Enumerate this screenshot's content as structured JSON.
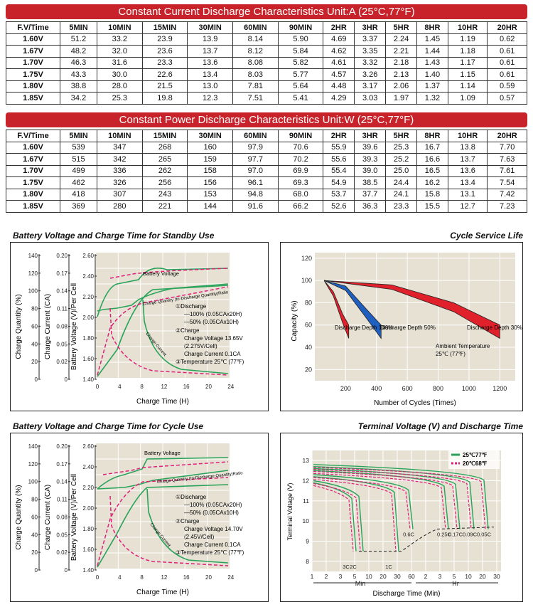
{
  "current_table": {
    "title": "Constant Current Discharge Characteristics    Unit:A (25°C,77°F)",
    "headers": [
      "F.V/Time",
      "5MIN",
      "10MIN",
      "15MIN",
      "30MIN",
      "60MIN",
      "90MIN",
      "2HR",
      "3HR",
      "5HR",
      "8HR",
      "10HR",
      "20HR"
    ],
    "rows": [
      [
        "1.60V",
        "51.2",
        "33.2",
        "23.9",
        "13.9",
        "8.14",
        "5.90",
        "4.69",
        "3.37",
        "2.24",
        "1.45",
        "1.19",
        "0.62"
      ],
      [
        "1.67V",
        "48.2",
        "32.0",
        "23.6",
        "13.7",
        "8.12",
        "5.84",
        "4.62",
        "3.35",
        "2.21",
        "1.44",
        "1.18",
        "0.61"
      ],
      [
        "1.70V",
        "46.3",
        "31.6",
        "23.3",
        "13.6",
        "8.08",
        "5.82",
        "4.61",
        "3.32",
        "2.18",
        "1.43",
        "1.17",
        "0.61"
      ],
      [
        "1.75V",
        "43.3",
        "30.0",
        "22.6",
        "13.4",
        "8.03",
        "5.77",
        "4.57",
        "3.26",
        "2.13",
        "1.40",
        "1.15",
        "0.61"
      ],
      [
        "1.80V",
        "38.8",
        "28.0",
        "21.5",
        "13.0",
        "7.81",
        "5.64",
        "4.48",
        "3.17",
        "2.06",
        "1.37",
        "1.14",
        "0.59"
      ],
      [
        "1.85V",
        "34.2",
        "25.3",
        "19.8",
        "12.3",
        "7.51",
        "5.41",
        "4.29",
        "3.03",
        "1.97",
        "1.32",
        "1.09",
        "0.57"
      ]
    ]
  },
  "power_table": {
    "title": "Constant Power Discharge Characteristics    Unit:W (25°C,77°F)",
    "headers": [
      "F.V/Time",
      "5MIN",
      "10MIN",
      "15MIN",
      "30MIN",
      "60MIN",
      "90MIN",
      "2HR",
      "3HR",
      "5HR",
      "8HR",
      "10HR",
      "20HR"
    ],
    "rows": [
      [
        "1.60V",
        "539",
        "347",
        "268",
        "160",
        "97.9",
        "70.6",
        "55.9",
        "39.6",
        "25.3",
        "16.7",
        "13.8",
        "7.70"
      ],
      [
        "1.67V",
        "515",
        "342",
        "265",
        "159",
        "97.7",
        "70.2",
        "55.6",
        "39.3",
        "25.2",
        "16.6",
        "13.7",
        "7.63"
      ],
      [
        "1.70V",
        "499",
        "336",
        "262",
        "158",
        "97.0",
        "69.9",
        "55.4",
        "39.0",
        "25.0",
        "16.5",
        "13.6",
        "7.61"
      ],
      [
        "1.75V",
        "462",
        "326",
        "256",
        "156",
        "96.1",
        "69.3",
        "54.9",
        "38.5",
        "24.4",
        "16.2",
        "13.4",
        "7.54"
      ],
      [
        "1.80V",
        "418",
        "307",
        "243",
        "153",
        "94.8",
        "68.0",
        "53.7",
        "37.7",
        "24.1",
        "15.8",
        "13.1",
        "7.42"
      ],
      [
        "1.85V",
        "369",
        "280",
        "221",
        "144",
        "91.6",
        "66.2",
        "52.6",
        "36.3",
        "23.3",
        "15.5",
        "12.7",
        "7.23"
      ]
    ]
  },
  "chart_data": [
    {
      "type": "line",
      "title": "Battery Voltage and Charge Time for Standby Use",
      "xlabel": "Charge Time (H)",
      "x_ticks": [
        "0",
        "4",
        "8",
        "12",
        "16",
        "20",
        "24"
      ],
      "axes": [
        {
          "label": "Charge Quantity (%)",
          "ticks": [
            "140",
            "120",
            "100",
            "80",
            "60",
            "40",
            "20",
            "0"
          ]
        },
        {
          "label": "Charge Current (CA)",
          "ticks": [
            "0.20",
            "0.17",
            "0.14",
            "0.11",
            "0.08",
            "0.05",
            "0.02",
            "0"
          ]
        },
        {
          "label": "Battery Voltage (V)/Per Cell",
          "ticks": [
            "2.60",
            "2.40",
            "2.20",
            "2.00",
            "1.80",
            "1.60",
            "1.40"
          ]
        }
      ],
      "curve_labels": [
        "Battery Voltage",
        "Charge Quantity (to-Discharge Quantity)Ratio",
        "Charge Current"
      ],
      "notes": [
        "①Discharge",
        "—100% (0.05CAx20H)",
        "—50% (0.05CAx10H)",
        "②Charge",
        "Charge Voltage 13.65V",
        "(2.275V/Cell)",
        "Charge Current 0.1CA",
        "③Temperature 25℃ (77℉)"
      ]
    },
    {
      "type": "line",
      "title": "Cycle Service Life",
      "xlabel": "Number of Cycles (Times)",
      "ylabel": "Capacity (%)",
      "x_ticks": [
        "200",
        "400",
        "600",
        "800",
        "1000",
        "1200"
      ],
      "y_ticks": [
        "120",
        "100",
        "80",
        "60",
        "40",
        "20"
      ],
      "series": [
        {
          "name": "Discharge Depth 100%",
          "color": "#e0202a",
          "x": [
            60,
            120,
            180,
            220
          ],
          "y": [
            100,
            90,
            70,
            60
          ]
        },
        {
          "name": "Discharge Depth 50%",
          "color": "#1f5fbf",
          "x": [
            60,
            200,
            330,
            430
          ],
          "y": [
            100,
            95,
            75,
            60
          ]
        },
        {
          "name": "Discharge Depth 30%",
          "color": "#e0202a",
          "x": [
            60,
            500,
            900,
            1200
          ],
          "y": [
            100,
            96,
            80,
            60
          ]
        }
      ],
      "annotation": [
        "Ambient Temperature",
        "25℃ (77℉)"
      ]
    },
    {
      "type": "line",
      "title": "Battery Voltage and Charge Time for Cycle Use",
      "xlabel": "Charge Time (H)",
      "x_ticks": [
        "0",
        "4",
        "8",
        "12",
        "16",
        "20",
        "24"
      ],
      "axes": [
        {
          "label": "Charge Quantity (%)",
          "ticks": [
            "140",
            "120",
            "100",
            "80",
            "60",
            "40",
            "20",
            "0"
          ]
        },
        {
          "label": "Charge Current (CA)",
          "ticks": [
            "0.20",
            "0.17",
            "0.14",
            "0.11",
            "0.08",
            "0.05",
            "0.02",
            "0"
          ]
        },
        {
          "label": "Battery Voltage (V)/Per Cell",
          "ticks": [
            "2.60",
            "2.40",
            "2.20",
            "2.00",
            "1.80",
            "1.60",
            "1.40"
          ]
        }
      ],
      "curve_labels": [
        "Battery Voltage",
        "Charge Quantity (to-Discharge Quantity)Ratio",
        "Charge Current"
      ],
      "notes": [
        "①Discharge",
        "—100% (0.05CAx20H)",
        "—50% (0.05CAx10H)",
        "②Charge",
        "Charge Voltage 14.70V",
        "(2.45V/Cell)",
        "Charge Current 0.1CA",
        "③Temperature 25℃ (77℉)"
      ]
    },
    {
      "type": "line",
      "title": "Terminal Voltage (V) and Discharge Time",
      "xlabel": "Discharge Time (Min)",
      "ylabel": "Terminal Voltage (V)",
      "y_ticks": [
        "13",
        "12",
        "11",
        "10",
        "9",
        "8"
      ],
      "x_ticks_min": [
        "1",
        "2",
        "3",
        "5",
        "10",
        "20",
        "30",
        "60"
      ],
      "x_ticks_hr": [
        "2",
        "3",
        "5",
        "10",
        "20",
        "30"
      ],
      "x_groups": [
        "Min",
        "Hr"
      ],
      "legend": [
        "25℃77℉",
        "20℃68℉"
      ],
      "curve_labels": [
        "3C",
        "2C",
        "1C",
        "0.6C",
        "0.25C",
        "0.17C",
        "0.09C",
        "0.05C"
      ]
    }
  ]
}
